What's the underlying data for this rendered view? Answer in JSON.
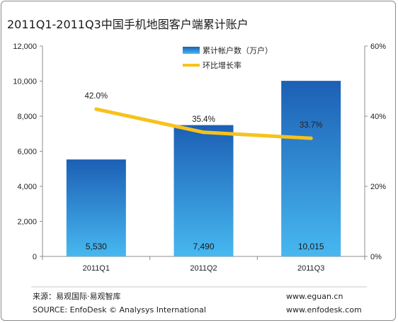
{
  "title": "2011Q1-2011Q3中国手机地图客户端累计账户",
  "chart_data": {
    "type": "bar",
    "categories": [
      "2011Q1",
      "2011Q2",
      "2011Q3"
    ],
    "series": [
      {
        "name": "累计帐户数（万户）",
        "type": "bar",
        "axis": "left",
        "values": [
          5530,
          7490,
          10015
        ],
        "labels": [
          "5,530",
          "7,490",
          "10,015"
        ]
      },
      {
        "name": "环比增长率",
        "type": "line",
        "axis": "right",
        "values": [
          42.0,
          35.4,
          33.7
        ],
        "labels": [
          "42.0%",
          "35.4%",
          "33.7%"
        ]
      }
    ],
    "ylim_left": [
      0,
      12000
    ],
    "yticks_left": [
      "0",
      "2,000",
      "4,000",
      "6,000",
      "8,000",
      "10,000",
      "12,000"
    ],
    "ylim_right": [
      0,
      60
    ],
    "yticks_right": [
      "0%",
      "20%",
      "40%",
      "60%"
    ],
    "legend_position": "top-center",
    "grid": false
  },
  "colors": {
    "bar_top": "#1c5fb4",
    "bar_bottom": "#47b8f0",
    "line": "#f7c21c"
  },
  "footer": {
    "source_cn": "来源：易观国际·易观智库",
    "source_en": "SOURCE: EnfoDesk © Analysys International",
    "url1": "www.eguan.cn",
    "url2": "www.enfodesk.com"
  }
}
